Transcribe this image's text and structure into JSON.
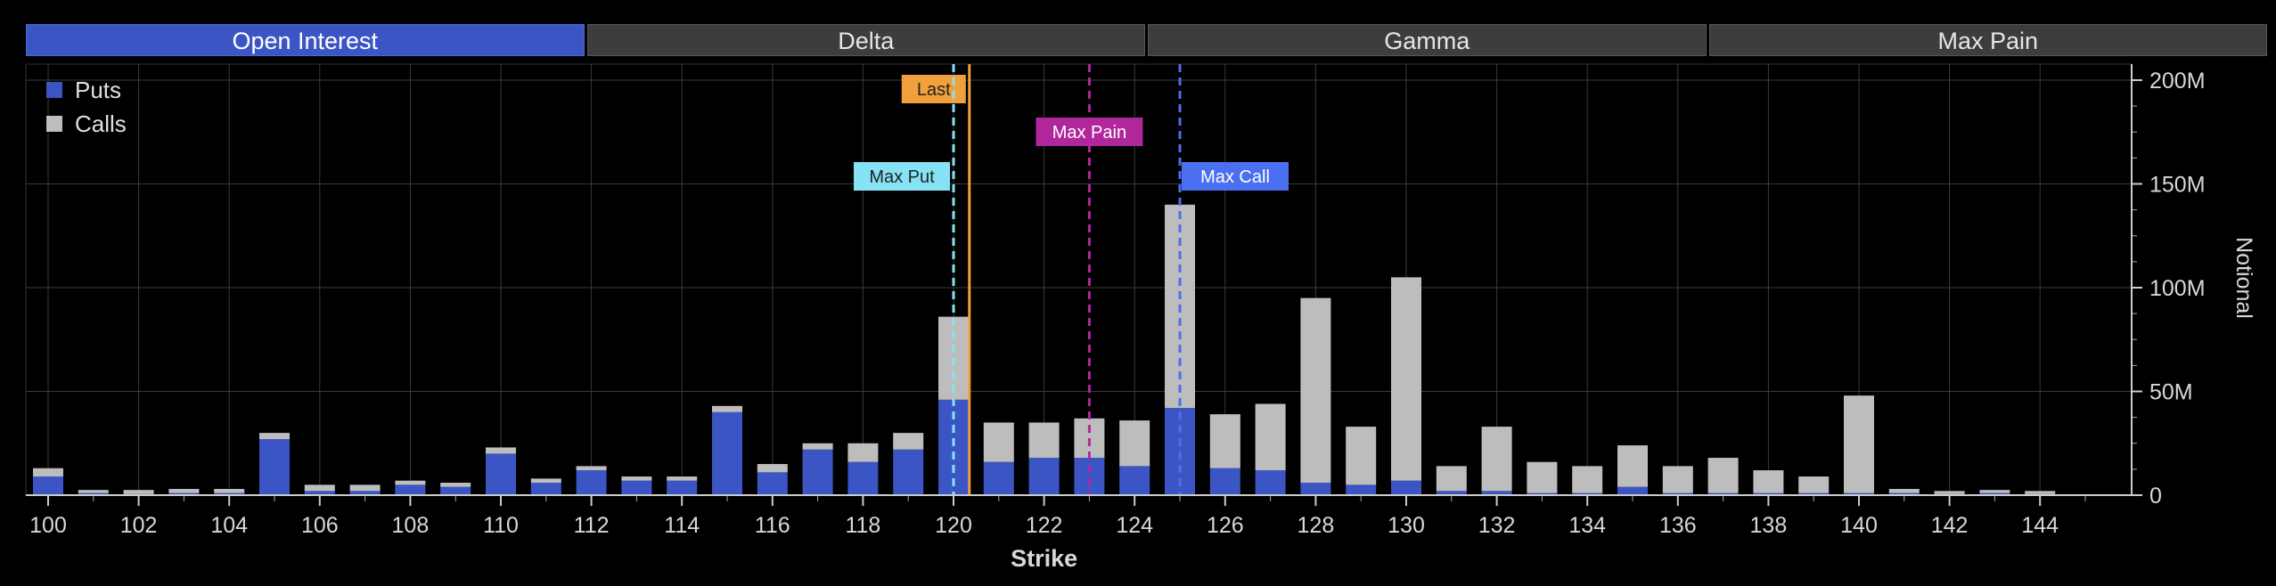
{
  "tabs": [
    {
      "label": "Open Interest",
      "active": true
    },
    {
      "label": "Delta",
      "active": false
    },
    {
      "label": "Gamma",
      "active": false
    },
    {
      "label": "Max Pain",
      "active": false
    }
  ],
  "colors": {
    "puts": "#3b55c4",
    "calls": "#bdbdbd",
    "last": "#f0a03c",
    "max_pain": "#b0279c",
    "max_put": "#86e3f5",
    "max_call": "#4a6ff0",
    "grid": "#3a3a3a"
  },
  "chart_data": {
    "type": "bar",
    "stacked": true,
    "title": "",
    "xlabel": "Strike",
    "ylabel": "Notional",
    "y_axis_side": "right",
    "ylim": [
      0,
      200
    ],
    "y_unit": "M",
    "yticks": [
      "0",
      "50M",
      "100M",
      "150M",
      "200M"
    ],
    "xticks": [
      100,
      102,
      104,
      106,
      108,
      110,
      112,
      114,
      116,
      118,
      120,
      122,
      124,
      126,
      128,
      130,
      132,
      134,
      136,
      138,
      140,
      142,
      144
    ],
    "legend": {
      "position": "top-left",
      "entries": [
        "Puts",
        "Calls"
      ]
    },
    "categories": [
      100,
      101,
      102,
      103,
      104,
      105,
      106,
      107,
      108,
      109,
      110,
      111,
      112,
      113,
      114,
      115,
      116,
      117,
      118,
      119,
      120,
      121,
      122,
      123,
      124,
      125,
      126,
      127,
      128,
      129,
      130,
      131,
      132,
      133,
      134,
      135,
      136,
      137,
      138,
      139,
      140,
      141,
      142,
      143,
      144
    ],
    "series": [
      {
        "name": "Puts",
        "values": [
          9,
          1,
          0.5,
          1,
          1,
          27,
          2,
          2,
          5,
          4,
          20,
          6,
          12,
          7,
          7,
          40,
          11,
          22,
          16,
          22,
          46,
          16,
          18,
          18,
          14,
          42,
          13,
          12,
          6,
          5,
          7,
          2,
          2,
          1,
          1,
          4,
          1,
          1,
          1,
          1,
          1,
          1,
          0.5,
          1,
          0.5
        ]
      },
      {
        "name": "Calls",
        "values": [
          4,
          1.5,
          2,
          2,
          2,
          3,
          3,
          3,
          2,
          2,
          3,
          2,
          2,
          2,
          2,
          3,
          4,
          3,
          9,
          8,
          40,
          19,
          17,
          19,
          22,
          98,
          26,
          32,
          89,
          28,
          98,
          12,
          31,
          15,
          13,
          20,
          13,
          17,
          11,
          8,
          47,
          2,
          1.5,
          1.5,
          1.5
        ]
      }
    ],
    "markers": [
      {
        "label": "Last",
        "x": 120.35,
        "style": "solid",
        "color_key": "last",
        "label_level": 0
      },
      {
        "label": "Max Pain",
        "x": 123,
        "style": "dashed",
        "color_key": "max_pain",
        "label_level": 1
      },
      {
        "label": "Max Put",
        "x": 120,
        "style": "dashed",
        "color_key": "max_put",
        "label_level": 2
      },
      {
        "label": "Max Call",
        "x": 125,
        "style": "dashed",
        "color_key": "max_call",
        "label_level": 2
      }
    ]
  }
}
